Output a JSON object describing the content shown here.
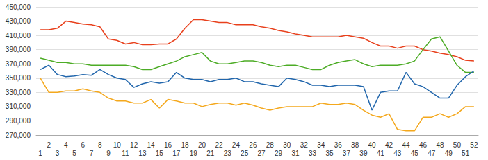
{
  "chart_data": {
    "type": "line",
    "x": [
      1,
      2,
      3,
      4,
      5,
      6,
      7,
      8,
      9,
      10,
      11,
      12,
      13,
      14,
      15,
      16,
      17,
      18,
      19,
      20,
      21,
      22,
      23,
      24,
      25,
      26,
      27,
      28,
      29,
      30,
      31,
      32,
      33,
      34,
      35,
      36,
      37,
      38,
      39,
      40,
      41,
      42,
      43,
      44,
      45,
      46,
      47,
      48,
      49,
      50,
      51,
      52
    ],
    "series": [
      {
        "color": "#e8401c",
        "values": [
          418000,
          418000,
          420000,
          430000,
          428000,
          426000,
          425000,
          422000,
          405000,
          403000,
          398000,
          400000,
          397000,
          397000,
          398000,
          398000,
          405000,
          420000,
          432000,
          432000,
          430000,
          428000,
          428000,
          425000,
          425000,
          425000,
          422000,
          420000,
          417000,
          415000,
          412000,
          410000,
          408000,
          408000,
          408000,
          408000,
          410000,
          408000,
          406000,
          400000,
          395000,
          395000,
          392000,
          395000,
          395000,
          390000,
          388000,
          385000,
          383000,
          380000,
          375000,
          374000
        ]
      },
      {
        "color": "#4dac26",
        "values": [
          378000,
          375000,
          372000,
          372000,
          370000,
          370000,
          368000,
          368000,
          368000,
          368000,
          368000,
          366000,
          362000,
          362000,
          366000,
          370000,
          374000,
          380000,
          383000,
          386000,
          374000,
          370000,
          370000,
          372000,
          374000,
          374000,
          372000,
          368000,
          366000,
          368000,
          368000,
          365000,
          362000,
          362000,
          368000,
          372000,
          374000,
          376000,
          370000,
          366000,
          368000,
          368000,
          368000,
          370000,
          374000,
          390000,
          405000,
          408000,
          388000,
          368000,
          358000,
          358000
        ]
      },
      {
        "color": "#2166ac",
        "values": [
          362000,
          368000,
          355000,
          352000,
          353000,
          355000,
          354000,
          362000,
          355000,
          350000,
          348000,
          337000,
          342000,
          345000,
          343000,
          345000,
          358000,
          350000,
          348000,
          348000,
          345000,
          348000,
          348000,
          350000,
          345000,
          345000,
          342000,
          340000,
          338000,
          350000,
          348000,
          345000,
          340000,
          340000,
          338000,
          340000,
          340000,
          340000,
          338000,
          305000,
          330000,
          332000,
          332000,
          358000,
          342000,
          338000,
          330000,
          322000,
          322000,
          340000,
          352000,
          360000
        ]
      },
      {
        "color": "#f4a81d",
        "values": [
          350000,
          330000,
          330000,
          332000,
          332000,
          335000,
          332000,
          330000,
          322000,
          318000,
          318000,
          315000,
          315000,
          320000,
          308000,
          320000,
          318000,
          315000,
          315000,
          310000,
          313000,
          315000,
          315000,
          312000,
          315000,
          312000,
          308000,
          305000,
          308000,
          310000,
          310000,
          310000,
          310000,
          315000,
          313000,
          313000,
          315000,
          313000,
          305000,
          298000,
          295000,
          300000,
          278000,
          276000,
          276000,
          295000,
          295000,
          300000,
          295000,
          300000,
          310000,
          310000
        ]
      }
    ],
    "xlim": [
      0.5,
      52.5
    ],
    "xticks": [
      1,
      2,
      3,
      4,
      5,
      6,
      7,
      8,
      9,
      10,
      11,
      12,
      13,
      14,
      15,
      16,
      17,
      18,
      19,
      20,
      21,
      22,
      23,
      24,
      25,
      26,
      27,
      28,
      29,
      30,
      31,
      32,
      33,
      34,
      35,
      36,
      37,
      38,
      39,
      40,
      41,
      42,
      43,
      44,
      45,
      46,
      47,
      48,
      49,
      50,
      51,
      52
    ],
    "ylim": [
      270000,
      450000
    ],
    "yticks": [
      {
        "value": 270000,
        "label": "270,000"
      },
      {
        "value": 290000,
        "label": "290,000"
      },
      {
        "value": 310000,
        "label": "310,000"
      },
      {
        "value": 330000,
        "label": "330,000"
      },
      {
        "value": 350000,
        "label": "350,000"
      },
      {
        "value": 370000,
        "label": "370,000"
      },
      {
        "value": 390000,
        "label": "390,000"
      },
      {
        "value": 410000,
        "label": "410,000"
      },
      {
        "value": 430000,
        "label": "430,000"
      },
      {
        "value": 450000,
        "label": "450,000"
      }
    ],
    "grid": true
  }
}
